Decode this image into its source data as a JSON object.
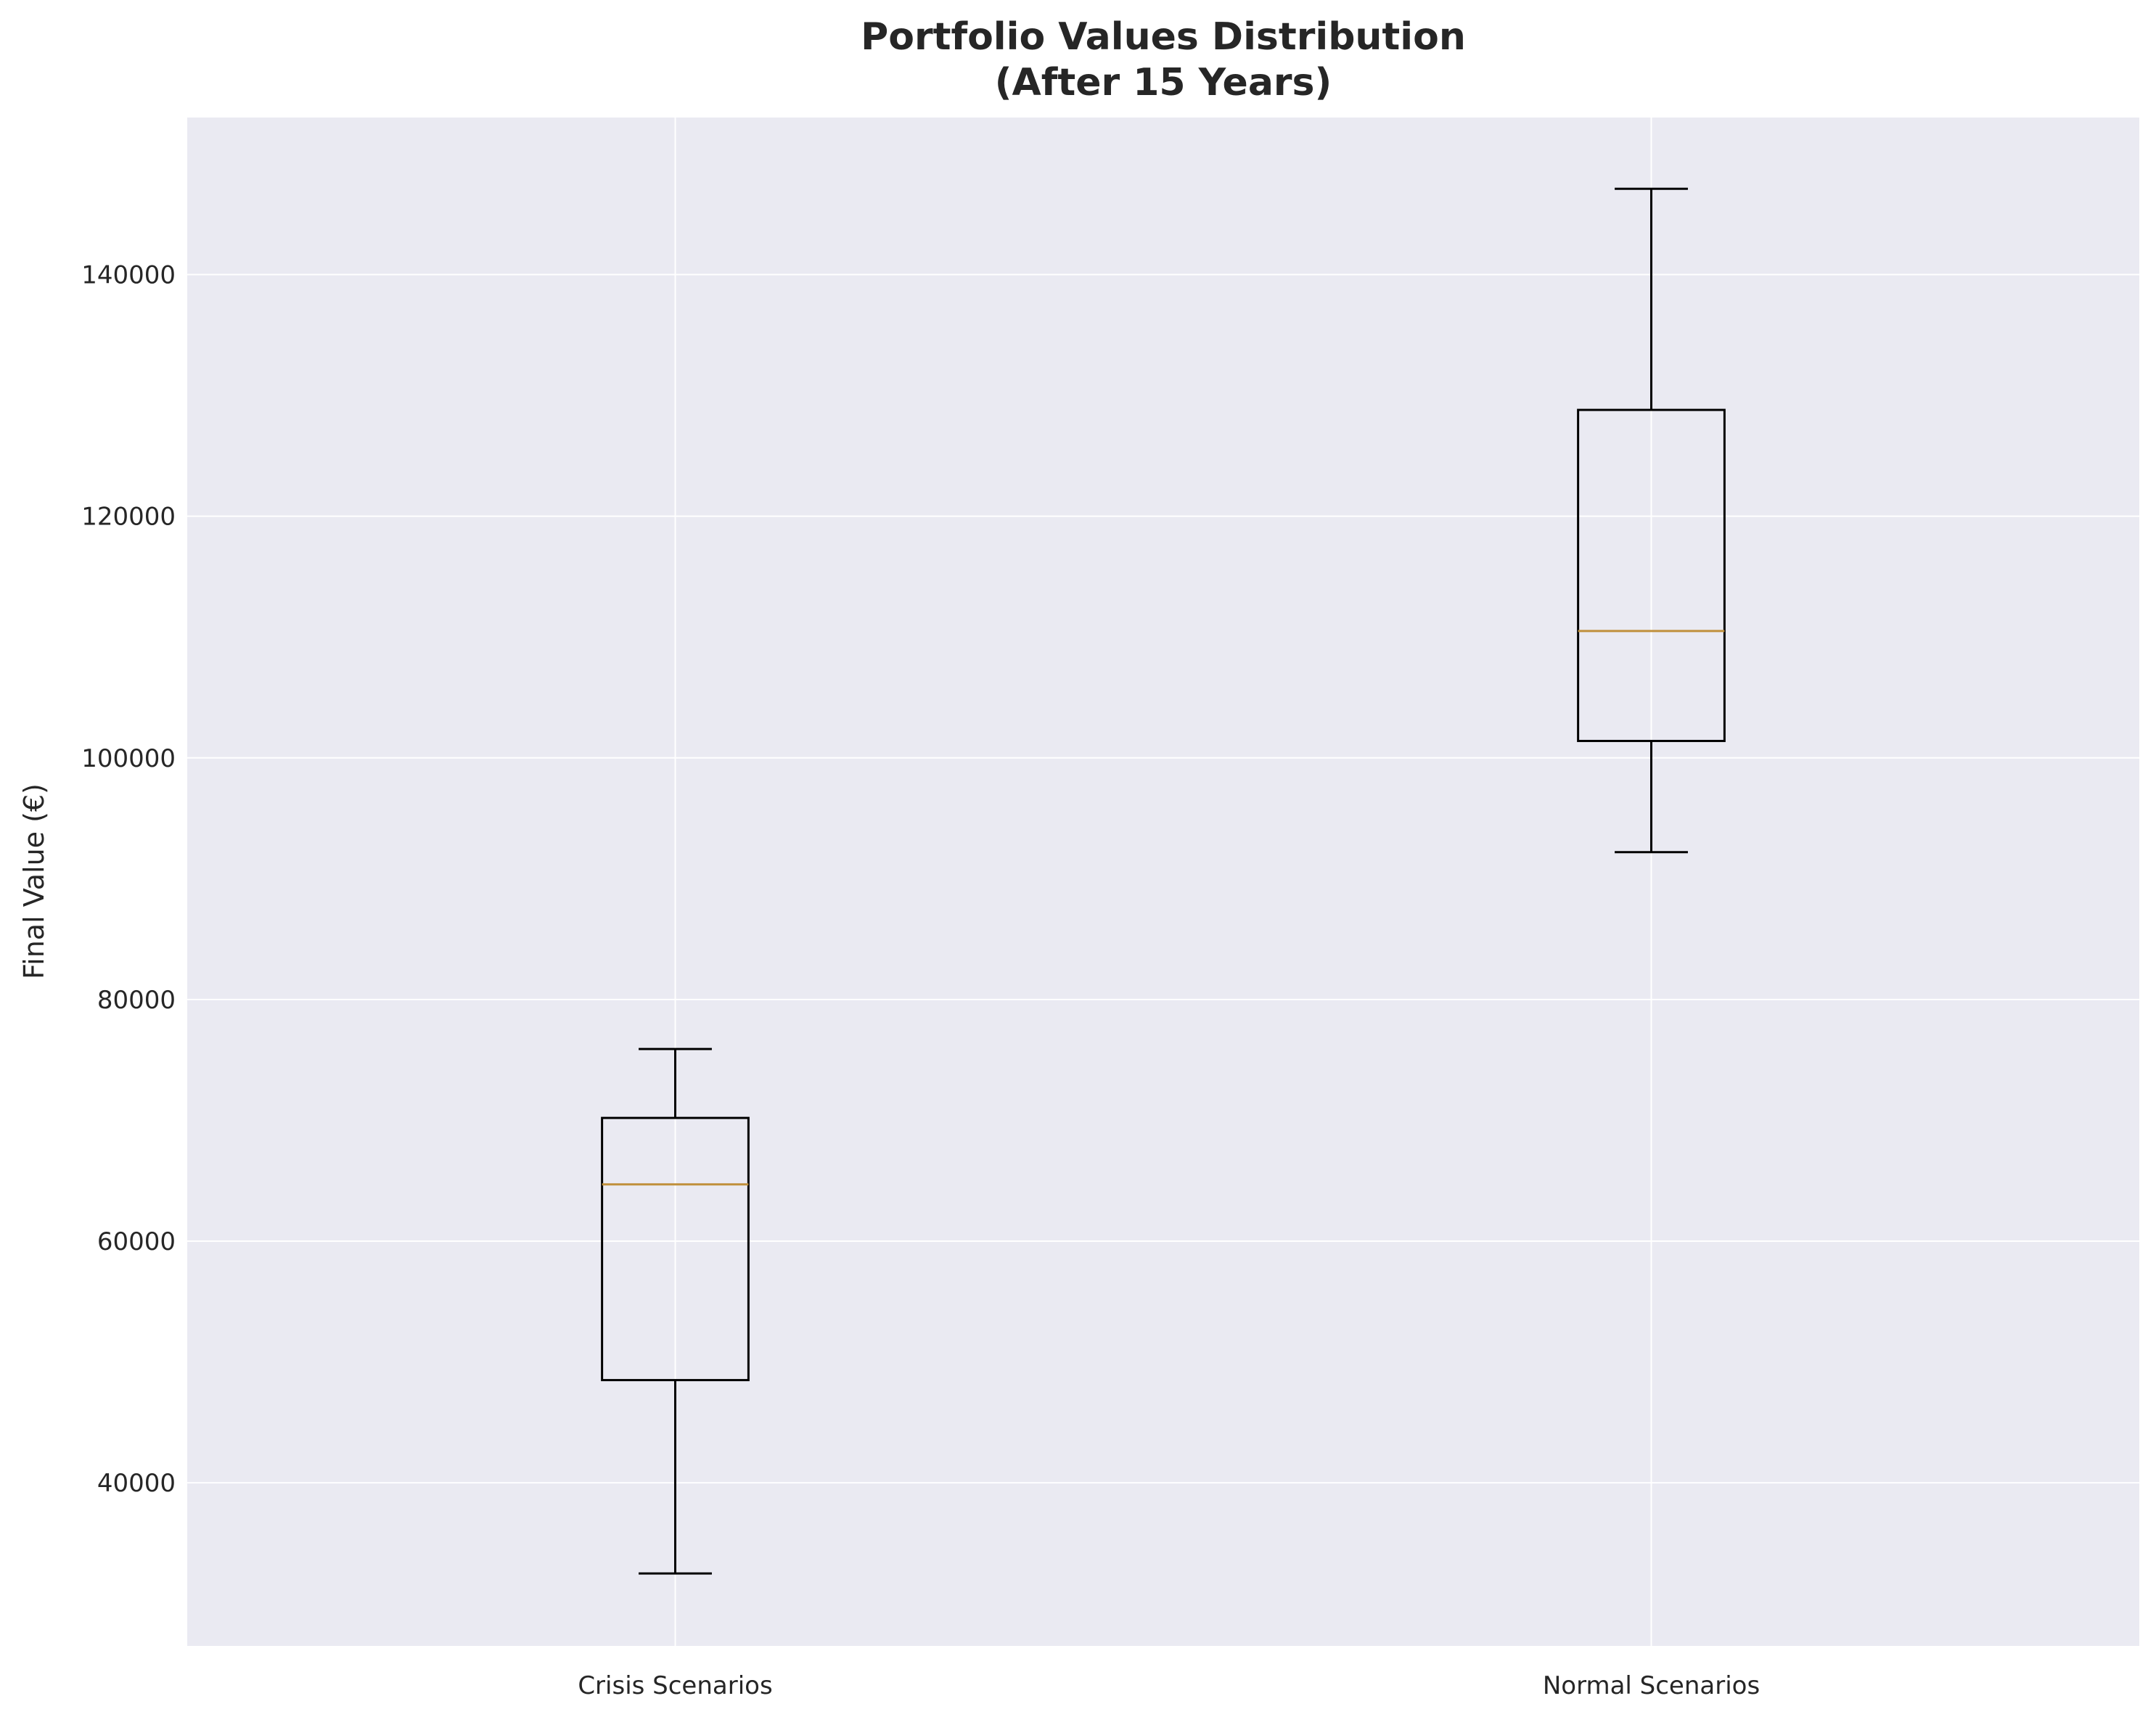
{
  "chart_data": {
    "type": "boxplot",
    "title": [
      "Portfolio Values Distribution",
      "(After 15 Years)"
    ],
    "xlabel": "",
    "ylabel": "Final Value (€)",
    "ylim": [
      26500,
      153000
    ],
    "yticks": [
      40000,
      60000,
      80000,
      100000,
      120000,
      140000
    ],
    "grid": true,
    "categories": [
      "Crisis Scenarios",
      "Normal Scenarios"
    ],
    "boxes": [
      {
        "category": "Crisis Scenarios",
        "whisker_low": 32500,
        "q1": 48500,
        "median": 64700,
        "q3": 70200,
        "whisker_high": 75900
      },
      {
        "category": "Normal Scenarios",
        "whisker_low": 92200,
        "q1": 101400,
        "median": 110500,
        "q3": 128800,
        "whisker_high": 147100
      }
    ],
    "colors": {
      "background": "#eaeaf2",
      "grid": "#ffffff",
      "box": "#000000",
      "median": "#c0903c"
    }
  }
}
